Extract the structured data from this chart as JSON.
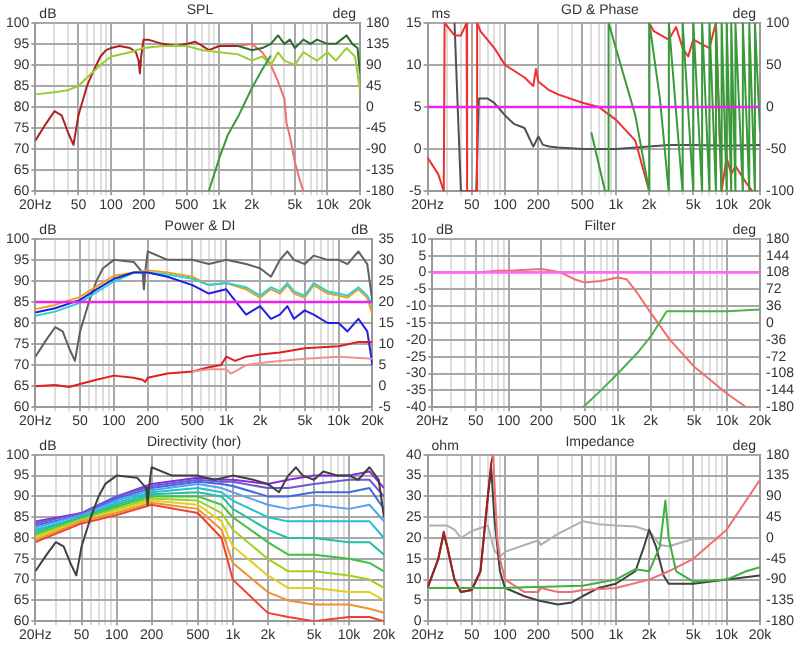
{
  "chart_data": [
    {
      "type": "line",
      "title": "SPL",
      "ylabel": "dB",
      "y2label": "deg",
      "log": "x",
      "grid": true,
      "xlim": [
        20,
        20000
      ],
      "xticks": [
        {
          "value": 20,
          "label": "20Hz"
        },
        {
          "value": 30,
          "label": null
        },
        {
          "value": 40,
          "label": null
        },
        50,
        {
          "value": 60,
          "label": null
        },
        {
          "value": 70,
          "label": null
        },
        {
          "value": 80,
          "label": null
        },
        {
          "value": 90,
          "label": null
        },
        100,
        200,
        {
          "value": 300,
          "label": null
        },
        {
          "value": 400,
          "label": null
        },
        500,
        {
          "value": 600,
          "label": null
        },
        {
          "value": 700,
          "label": null
        },
        {
          "value": 800,
          "label": null
        },
        {
          "value": 900,
          "label": null
        },
        {
          "value": 1000,
          "label": "1k"
        },
        {
          "value": 2000,
          "label": "2k"
        },
        {
          "value": 3000,
          "label": null
        },
        {
          "value": 4000,
          "label": null
        },
        {
          "value": 5000,
          "label": "5k"
        },
        {
          "value": 6000,
          "label": null
        },
        {
          "value": 7000,
          "label": null
        },
        {
          "value": 8000,
          "label": null
        },
        {
          "value": 9000,
          "label": null
        },
        {
          "value": 10000,
          "label": "10k"
        },
        {
          "value": 20000,
          "label": "20k"
        }
      ],
      "ylim": [
        60,
        100
      ],
      "yticks": [
        60,
        65,
        70,
        75,
        80,
        85,
        90,
        95,
        100
      ],
      "y2lim": [
        -180,
        180
      ],
      "y2ticks": [
        -180,
        -135,
        -90,
        -45,
        0,
        45,
        90,
        135,
        180
      ],
      "series": [
        {
          "color": "#b02020",
          "x": [
            20,
            25,
            30,
            35,
            40,
            45,
            50,
            60,
            70,
            80,
            90,
            100,
            120,
            150,
            170,
            180,
            185,
            190,
            200,
            220,
            300,
            400,
            500,
            600,
            700,
            800,
            1000,
            1200,
            1500
          ],
          "values": [
            72,
            76,
            79,
            78,
            74,
            71,
            78,
            85,
            89,
            92,
            93.5,
            94,
            94.5,
            94,
            93,
            91,
            88,
            92,
            96,
            96,
            95,
            94.5,
            95,
            95.5,
            94.5,
            93.5,
            94.5,
            94.5,
            94.5
          ]
        },
        {
          "color": "#f07070",
          "x": [
            1500,
            2000,
            2500,
            3000,
            3500,
            4000,
            4200,
            4500,
            5000,
            5500,
            6000
          ],
          "values": [
            94.5,
            95,
            93,
            90,
            86,
            82,
            76,
            73,
            67,
            63,
            60
          ]
        },
        {
          "color": "#2e6b2e",
          "x": [
            1500,
            2000,
            2500,
            3000,
            3500,
            4000,
            4500,
            5000,
            6000,
            7000,
            8000,
            10000,
            12000,
            15000,
            17000,
            19000,
            20000
          ],
          "values": [
            94.5,
            93.5,
            94,
            95,
            97,
            95,
            96,
            94,
            96,
            95,
            96,
            95,
            95,
            97,
            95,
            94,
            88
          ]
        },
        {
          "color": "#9acd32",
          "x": [
            20,
            30,
            40,
            50,
            60,
            80,
            100,
            150,
            200,
            300,
            500,
            700,
            1000,
            1500,
            2000,
            2500,
            3000,
            3500,
            4000,
            5000,
            6000,
            8000,
            10000,
            12000,
            15000,
            18000,
            20000
          ],
          "values": [
            83,
            83.5,
            84,
            85,
            87,
            90,
            92,
            93,
            94,
            94.5,
            94.5,
            93.5,
            93,
            92.5,
            91,
            92,
            90,
            93,
            91,
            90,
            93,
            91,
            93,
            91,
            94,
            92,
            84
          ]
        },
        {
          "color": "#3a9a3a",
          "axis": "y2",
          "x": [
            800,
            1000,
            1200,
            1500,
            2000,
            2500,
            3000
          ],
          "values": [
            -180,
            -110,
            -60,
            -20,
            40,
            80,
            110
          ]
        }
      ]
    },
    {
      "type": "line",
      "title": "GD & Phase",
      "ylabel": "ms",
      "y2label": "deg",
      "log": "x",
      "grid": true,
      "xlim": [
        20,
        20000
      ],
      "xticks": [
        {
          "value": 20,
          "label": "20Hz"
        },
        {
          "value": 30,
          "label": null
        },
        {
          "value": 40,
          "label": null
        },
        50,
        {
          "value": 60,
          "label": null
        },
        {
          "value": 70,
          "label": null
        },
        {
          "value": 80,
          "label": null
        },
        {
          "value": 90,
          "label": null
        },
        100,
        200,
        {
          "value": 300,
          "label": null
        },
        {
          "value": 400,
          "label": null
        },
        500,
        {
          "value": 600,
          "label": null
        },
        {
          "value": 700,
          "label": null
        },
        {
          "value": 800,
          "label": null
        },
        {
          "value": 900,
          "label": null
        },
        {
          "value": 1000,
          "label": "1k"
        },
        {
          "value": 2000,
          "label": "2k"
        },
        {
          "value": 3000,
          "label": null
        },
        {
          "value": 4000,
          "label": null
        },
        {
          "value": 5000,
          "label": "5k"
        },
        {
          "value": 6000,
          "label": null
        },
        {
          "value": 7000,
          "label": null
        },
        {
          "value": 8000,
          "label": null
        },
        {
          "value": 9000,
          "label": null
        },
        {
          "value": 10000,
          "label": "10k"
        },
        {
          "value": 20000,
          "label": "20k"
        }
      ],
      "ylim": [
        -5,
        15
      ],
      "yticks": [
        -5,
        0,
        5,
        10,
        15
      ],
      "y2lim": [
        -100,
        100
      ],
      "y2ticks": [
        -100,
        -50,
        0,
        50,
        100
      ],
      "ref_lines": [
        {
          "axis": "y2",
          "value": 0,
          "color": "#ee22ee"
        }
      ],
      "series": [
        {
          "color": "#505050",
          "x": [
            35,
            40,
            55,
            58,
            70,
            80,
            100,
            120,
            150,
            180,
            200,
            220,
            250,
            300,
            500,
            1000,
            2000,
            3000,
            5000,
            10000,
            20000
          ],
          "values": [
            15,
            -5,
            -5,
            6,
            6,
            5.5,
            4,
            3,
            2.5,
            0.3,
            1.5,
            0.5,
            0.3,
            0.2,
            0,
            0,
            0.3,
            0.5,
            0.5,
            0.4,
            0.5
          ]
        },
        {
          "color": "#f03030",
          "axis": "y2",
          "x": [
            20,
            25,
            28,
            28.5,
            35,
            40,
            45,
            45.5,
            55,
            56,
            60,
            80,
            100,
            150,
            180,
            190,
            200,
            210,
            250,
            300,
            500,
            700,
            1000,
            1500,
            2000
          ],
          "values": [
            -60,
            -80,
            -100,
            100,
            85,
            85,
            100,
            -100,
            -100,
            100,
            90,
            70,
            50,
            35,
            25,
            45,
            30,
            28,
            20,
            15,
            5,
            0,
            -15,
            -40,
            -100
          ]
        },
        {
          "color": "#f03030",
          "axis": "y2",
          "x": [
            2000,
            2200,
            3000,
            3500,
            4000,
            4500,
            5000,
            7000,
            8000,
            9000,
            10000,
            11000,
            12000,
            15000,
            17000
          ],
          "values": [
            100,
            90,
            80,
            95,
            70,
            60,
            80,
            70,
            100,
            -100,
            -60,
            -80,
            -70,
            -90,
            -100
          ]
        },
        {
          "color": "#3a9a3a",
          "axis": "y2",
          "x": [
            600,
            800,
            850,
            860,
            1000,
            1500,
            2000,
            2010,
            2500,
            3000,
            3010,
            4000,
            4010,
            5000,
            5010,
            6000,
            6010,
            7000,
            7010,
            8000,
            8010,
            9000,
            9010,
            10000,
            10010,
            11000,
            11010,
            12000,
            12010,
            14000,
            14010,
            16000,
            16010,
            18000,
            18010,
            20000
          ],
          "values": [
            -30,
            -100,
            -100,
            100,
            70,
            -10,
            -100,
            100,
            10,
            -100,
            100,
            -100,
            100,
            -100,
            100,
            -100,
            100,
            -100,
            100,
            -100,
            100,
            -100,
            100,
            -100,
            100,
            -100,
            100,
            -100,
            100,
            -100,
            100,
            -100,
            100,
            -100,
            100,
            -30
          ]
        }
      ]
    },
    {
      "type": "line",
      "title": "Power & DI",
      "ylabel": "dB",
      "y2label": "dB",
      "log": "x",
      "grid": true,
      "xlim": [
        20,
        20000
      ],
      "xticks": [
        {
          "value": 20,
          "label": "20Hz"
        },
        {
          "value": 30,
          "label": null
        },
        {
          "value": 40,
          "label": null
        },
        50,
        {
          "value": 60,
          "label": null
        },
        {
          "value": 70,
          "label": null
        },
        {
          "value": 80,
          "label": null
        },
        {
          "value": 90,
          "label": null
        },
        100,
        200,
        {
          "value": 300,
          "label": null
        },
        {
          "value": 400,
          "label": null
        },
        500,
        {
          "value": 600,
          "label": null
        },
        {
          "value": 700,
          "label": null
        },
        {
          "value": 800,
          "label": null
        },
        {
          "value": 900,
          "label": null
        },
        {
          "value": 1000,
          "label": "1k"
        },
        {
          "value": 2000,
          "label": "2k"
        },
        {
          "value": 3000,
          "label": null
        },
        {
          "value": 4000,
          "label": null
        },
        {
          "value": 5000,
          "label": "5k"
        },
        {
          "value": 6000,
          "label": null
        },
        {
          "value": 7000,
          "label": null
        },
        {
          "value": 8000,
          "label": null
        },
        {
          "value": 9000,
          "label": null
        },
        {
          "value": 10000,
          "label": "10k"
        },
        {
          "value": 20000,
          "label": "20k"
        }
      ],
      "ylim": [
        60,
        100
      ],
      "yticks": [
        60,
        65,
        70,
        75,
        80,
        85,
        90,
        95,
        100
      ],
      "y2lim": [
        -5,
        35
      ],
      "y2ticks": [
        -5,
        0,
        5,
        10,
        15,
        20,
        25,
        30,
        35
      ],
      "ref_lines": [
        {
          "axis": "y",
          "value": 85,
          "color": "#ee22ee"
        }
      ],
      "series": [
        {
          "color": "#606060",
          "x": [
            20,
            25,
            30,
            35,
            40,
            45,
            50,
            60,
            70,
            80,
            100,
            150,
            180,
            185,
            190,
            200,
            300,
            500,
            700,
            1000,
            1500,
            2000,
            2500,
            3000,
            3500,
            4000,
            5000,
            6000,
            8000,
            10000,
            12000,
            15000,
            18000,
            20000
          ],
          "values": [
            72,
            76,
            79,
            78,
            74,
            71,
            78,
            85,
            90,
            93,
            95,
            94.5,
            92,
            88,
            92,
            97,
            95,
            95,
            94,
            95,
            94,
            93,
            91,
            95,
            97,
            95,
            94,
            96,
            95,
            95,
            94,
            97,
            94,
            85
          ]
        },
        {
          "color": "#f0a020",
          "x": [
            20,
            30,
            50,
            70,
            100,
            150,
            200,
            300,
            500,
            700,
            1000,
            1500,
            2000,
            2500,
            3000,
            3500,
            4000,
            5000,
            6000,
            8000,
            10000,
            12000,
            15000,
            18000,
            20000
          ],
          "values": [
            83.3,
            84.3,
            86.2,
            88.7,
            91.2,
            92,
            92.5,
            92,
            91,
            89,
            89.5,
            88,
            86,
            88,
            87,
            89,
            87,
            86,
            89,
            87,
            86.5,
            86,
            88,
            86,
            82
          ]
        },
        {
          "color": "#30d0d0",
          "x": [
            20,
            30,
            50,
            70,
            100,
            150,
            200,
            300,
            500,
            700,
            1000,
            1500,
            2000,
            2500,
            3000,
            3500,
            4000,
            5000,
            6000,
            8000,
            10000,
            12000,
            15000,
            18000,
            20000
          ],
          "values": [
            81.7,
            82.7,
            84.8,
            87.3,
            89.8,
            92,
            92,
            91.5,
            90.5,
            89,
            89.5,
            88.5,
            86.5,
            88.5,
            87.5,
            89.5,
            87.5,
            86.5,
            89.5,
            87.5,
            87,
            86.5,
            88.5,
            86.5,
            84
          ]
        },
        {
          "color": "#2020e0",
          "x": [
            20,
            30,
            50,
            70,
            100,
            150,
            200,
            300,
            500,
            700,
            1000,
            1500,
            2000,
            2500,
            3000,
            3500,
            4000,
            5000,
            6000,
            8000,
            10000,
            12000,
            15000,
            18000,
            20000
          ],
          "values": [
            82.5,
            83.5,
            85.5,
            88,
            90.5,
            92,
            92,
            91,
            89,
            87,
            88,
            82,
            84,
            81,
            82,
            84,
            81,
            83,
            82,
            80,
            80,
            78,
            81,
            78,
            70
          ]
        },
        {
          "color": "#e02020",
          "axis": "y2",
          "x": [
            20,
            30,
            40,
            50,
            70,
            100,
            150,
            180,
            190,
            200,
            300,
            500,
            700,
            900,
            1000,
            1200,
            1500,
            2000,
            3000,
            5000,
            10000,
            15000,
            20000
          ],
          "values": [
            0,
            0.3,
            -0.2,
            0.5,
            1.5,
            2.5,
            2,
            1.5,
            1,
            2,
            3,
            3.5,
            4.5,
            5,
            7,
            6,
            7,
            7.5,
            8,
            9,
            9.5,
            10.5,
            10.5
          ]
        },
        {
          "color": "#f09090",
          "axis": "y2",
          "x": [
            500,
            700,
            1000,
            1100,
            1200,
            1500,
            2000,
            3000,
            5000,
            10000,
            20000
          ],
          "values": [
            3.5,
            4,
            4,
            3,
            3.5,
            5,
            5.5,
            6,
            6.5,
            7,
            6.5
          ]
        }
      ]
    },
    {
      "type": "line",
      "title": "Filter",
      "ylabel": "dB",
      "y2label": "deg",
      "log": "x",
      "grid": true,
      "xlim": [
        20,
        20000
      ],
      "xticks": [
        {
          "value": 20,
          "label": "20Hz"
        },
        {
          "value": 30,
          "label": null
        },
        {
          "value": 40,
          "label": null
        },
        50,
        {
          "value": 60,
          "label": null
        },
        {
          "value": 70,
          "label": null
        },
        {
          "value": 80,
          "label": null
        },
        {
          "value": 90,
          "label": null
        },
        100,
        200,
        {
          "value": 300,
          "label": null
        },
        {
          "value": 400,
          "label": null
        },
        500,
        {
          "value": 600,
          "label": null
        },
        {
          "value": 700,
          "label": null
        },
        {
          "value": 800,
          "label": null
        },
        {
          "value": 900,
          "label": null
        },
        {
          "value": 1000,
          "label": "1k"
        },
        {
          "value": 2000,
          "label": "2k"
        },
        {
          "value": 3000,
          "label": null
        },
        {
          "value": 4000,
          "label": null
        },
        {
          "value": 5000,
          "label": "5k"
        },
        {
          "value": 6000,
          "label": null
        },
        {
          "value": 7000,
          "label": null
        },
        {
          "value": 8000,
          "label": null
        },
        {
          "value": 9000,
          "label": null
        },
        {
          "value": 10000,
          "label": "10k"
        },
        {
          "value": 20000,
          "label": "20k"
        }
      ],
      "ylim": [
        -40,
        10
      ],
      "yticks": [
        -40,
        -35,
        -30,
        -25,
        -20,
        -15,
        -10,
        -5,
        0,
        5,
        10
      ],
      "y2lim": [
        -180,
        180
      ],
      "y2ticks": [
        -180,
        -144,
        -108,
        -72,
        -36,
        0,
        36,
        72,
        108,
        144,
        180
      ],
      "ref_lines": [
        {
          "axis": "y",
          "value": 0,
          "color": "#ff66ff"
        }
      ],
      "series": [
        {
          "color": "#f07070",
          "x": [
            20,
            50,
            80,
            100,
            200,
            250,
            300,
            400,
            500,
            700,
            1000,
            1200,
            1500,
            2000,
            3000,
            5000,
            10000,
            15000
          ],
          "values": [
            0,
            0,
            0.5,
            0.5,
            1,
            0.5,
            0,
            -2,
            -3,
            -2.5,
            -1.5,
            -2,
            -6,
            -12,
            -20,
            -28,
            -36,
            -40
          ]
        },
        {
          "color": "#50b050",
          "x": [
            480,
            700,
            1000,
            1500,
            2000,
            2800,
            5000,
            10000,
            20000
          ],
          "values": [
            -40,
            -35,
            -30,
            -24,
            -19,
            -11.5,
            -11.5,
            -11.5,
            -11
          ]
        }
      ]
    },
    {
      "type": "line",
      "title": "Directivity (hor)",
      "ylabel": "dB",
      "log": "x",
      "grid": true,
      "xlim": [
        20,
        20000
      ],
      "xticks": [
        {
          "value": 20,
          "label": "20Hz"
        },
        {
          "value": 30,
          "label": null
        },
        {
          "value": 40,
          "label": null
        },
        50,
        {
          "value": 60,
          "label": null
        },
        {
          "value": 70,
          "label": null
        },
        {
          "value": 80,
          "label": null
        },
        {
          "value": 90,
          "label": null
        },
        100,
        200,
        {
          "value": 300,
          "label": null
        },
        {
          "value": 400,
          "label": null
        },
        500,
        {
          "value": 600,
          "label": null
        },
        {
          "value": 700,
          "label": null
        },
        {
          "value": 800,
          "label": null
        },
        {
          "value": 900,
          "label": null
        },
        {
          "value": 1000,
          "label": "1k"
        },
        {
          "value": 2000,
          "label": "2k"
        },
        {
          "value": 3000,
          "label": null
        },
        {
          "value": 4000,
          "label": null
        },
        {
          "value": 5000,
          "label": "5k"
        },
        {
          "value": 6000,
          "label": null
        },
        {
          "value": 7000,
          "label": null
        },
        {
          "value": 8000,
          "label": null
        },
        {
          "value": 9000,
          "label": null
        },
        {
          "value": 10000,
          "label": "10k"
        },
        {
          "value": 20000,
          "label": "20k"
        }
      ],
      "ylim": [
        60,
        100
      ],
      "yticks": [
        60,
        65,
        70,
        75,
        80,
        85,
        90,
        95,
        100
      ],
      "x": [
        20,
        50,
        100,
        200,
        500,
        800,
        1000,
        2000,
        3000,
        5000,
        10000,
        15000,
        20000
      ],
      "series": [
        {
          "color": "#8a2be2",
          "values": [
            84,
            86,
            90,
            93,
            94.5,
            94,
            94,
            93,
            94,
            95,
            95,
            96,
            92
          ]
        },
        {
          "color": "#6a5acd",
          "values": [
            83.5,
            86,
            90,
            92.5,
            94,
            93.5,
            93.5,
            92,
            92,
            93,
            94,
            94,
            90
          ]
        },
        {
          "color": "#4169e1",
          "values": [
            83,
            85.5,
            89.5,
            92,
            93.5,
            93,
            92.5,
            90,
            90,
            91,
            91,
            92,
            87
          ]
        },
        {
          "color": "#5aa0f0",
          "values": [
            82.5,
            85.5,
            89,
            91.5,
            93,
            92,
            91,
            88,
            87,
            88,
            87,
            88,
            84
          ]
        },
        {
          "color": "#20c0d0",
          "values": [
            82,
            85,
            88.5,
            91,
            92,
            91,
            89,
            85,
            84,
            84,
            84,
            84,
            80
          ]
        },
        {
          "color": "#20c0a0",
          "values": [
            81.5,
            85,
            88,
            90.5,
            91,
            90,
            87,
            82,
            80,
            80,
            79,
            79,
            76
          ]
        },
        {
          "color": "#40c040",
          "values": [
            81,
            84.5,
            87.5,
            90,
            90,
            88,
            85,
            79,
            76,
            76,
            75,
            74,
            72
          ]
        },
        {
          "color": "#a0d020",
          "values": [
            80.5,
            84.5,
            87,
            89.5,
            89,
            86,
            82,
            75,
            72,
            72,
            71,
            70,
            68
          ]
        },
        {
          "color": "#e0d020",
          "values": [
            80,
            84,
            86.5,
            89,
            88,
            84,
            78,
            71,
            68,
            68,
            67,
            67,
            65
          ]
        },
        {
          "color": "#f09030",
          "values": [
            79.5,
            84,
            86,
            88.5,
            87,
            82,
            74,
            67,
            65,
            64,
            64,
            63,
            62
          ]
        },
        {
          "color": "#f04030",
          "values": [
            79,
            83.5,
            85.5,
            88,
            86,
            80,
            70,
            62,
            61,
            60,
            61,
            61,
            60
          ]
        },
        {
          "color": "#404040",
          "x": [
            20,
            25,
            30,
            35,
            40,
            45,
            50,
            60,
            70,
            80,
            100,
            150,
            180,
            185,
            190,
            200,
            300,
            500,
            700,
            1000,
            1500,
            2000,
            2500,
            3000,
            3500,
            4000,
            5000,
            6000,
            8000,
            10000,
            12000,
            15000,
            18000,
            20000
          ],
          "values": [
            72,
            76,
            79,
            78,
            74,
            71,
            78,
            85,
            90,
            93,
            95,
            94.5,
            92,
            88,
            92,
            97,
            95,
            95,
            94,
            95,
            94,
            93,
            91,
            95,
            97,
            95,
            94,
            96,
            95,
            95,
            94,
            97,
            94,
            85
          ]
        }
      ]
    },
    {
      "type": "line",
      "title": "Impedance",
      "ylabel": "ohm",
      "y2label": "deg",
      "log": "x",
      "grid": true,
      "xlim": [
        20,
        20000
      ],
      "xticks": [
        {
          "value": 20,
          "label": "20Hz"
        },
        {
          "value": 30,
          "label": null
        },
        {
          "value": 40,
          "label": null
        },
        50,
        {
          "value": 60,
          "label": null
        },
        {
          "value": 70,
          "label": null
        },
        {
          "value": 80,
          "label": null
        },
        {
          "value": 90,
          "label": null
        },
        100,
        200,
        {
          "value": 300,
          "label": null
        },
        {
          "value": 400,
          "label": null
        },
        500,
        {
          "value": 600,
          "label": null
        },
        {
          "value": 700,
          "label": null
        },
        {
          "value": 800,
          "label": null
        },
        {
          "value": 900,
          "label": null
        },
        {
          "value": 1000,
          "label": "1k"
        },
        {
          "value": 2000,
          "label": "2k"
        },
        {
          "value": 3000,
          "label": null
        },
        {
          "value": 4000,
          "label": null
        },
        {
          "value": 5000,
          "label": "5k"
        },
        {
          "value": 6000,
          "label": null
        },
        {
          "value": 7000,
          "label": null
        },
        {
          "value": 8000,
          "label": null
        },
        {
          "value": 9000,
          "label": null
        },
        {
          "value": 10000,
          "label": "10k"
        },
        {
          "value": 20000,
          "label": "20k"
        }
      ],
      "ylim": [
        0,
        40
      ],
      "yticks": [
        0,
        5,
        10,
        15,
        20,
        25,
        30,
        35,
        40
      ],
      "y2lim": [
        -180,
        180
      ],
      "y2ticks": [
        -180,
        -135,
        -90,
        -45,
        0,
        45,
        90,
        135,
        180
      ],
      "series": [
        {
          "color": "#b0b0b0",
          "axis": "y2",
          "x": [
            20,
            30,
            35,
            40,
            50,
            70,
            80,
            90,
            100,
            150,
            200,
            210,
            300,
            500,
            700,
            1000,
            1500,
            2000,
            2500,
            3000,
            5000,
            10000,
            20000
          ],
          "values": [
            27,
            27,
            18,
            0,
            15,
            27,
            -27,
            -40,
            -30,
            -15,
            -5,
            -15,
            9,
            36,
            30,
            27,
            25,
            15,
            -15,
            -18,
            -2,
            0,
            0
          ]
        },
        {
          "color": "#404040",
          "x": [
            20,
            25,
            28,
            30,
            35,
            40,
            50,
            60,
            70,
            75,
            80,
            90,
            100,
            150,
            200,
            300,
            400,
            500,
            700,
            1000,
            1500,
            1800,
            2000,
            2300,
            2700,
            3000,
            5000,
            10000,
            20000
          ],
          "values": [
            8,
            15,
            21,
            18,
            10,
            7,
            7.5,
            12,
            30,
            37,
            25,
            12,
            8,
            6,
            5,
            4,
            4.5,
            6,
            8,
            9,
            12,
            18,
            22,
            18,
            11,
            9,
            9,
            10,
            11
          ]
        },
        {
          "color": "#a02020",
          "x": [
            20,
            25,
            28,
            30,
            35,
            40,
            50,
            60,
            70,
            75,
            78
          ],
          "values": [
            8,
            15,
            21.5,
            18,
            10,
            7,
            7.5,
            12,
            30,
            38,
            40
          ]
        },
        {
          "color": "#f07070",
          "x": [
            78,
            85,
            90,
            100,
            150,
            200,
            210,
            300,
            400,
            500,
            1000,
            2000,
            3000,
            5000,
            10000,
            20000
          ],
          "values": [
            40,
            20,
            15,
            10,
            7,
            7,
            8,
            7,
            7,
            7.5,
            8,
            10,
            12,
            15,
            22,
            34
          ]
        },
        {
          "color": "#40b040",
          "x": [
            20,
            100,
            500,
            1000,
            1500,
            2000,
            2500,
            2800,
            3000,
            3500,
            5000,
            10000,
            15000,
            20000
          ],
          "values": [
            8,
            8,
            8.5,
            10,
            12.5,
            12,
            18,
            29,
            20,
            12,
            9.5,
            10,
            12,
            13
          ]
        }
      ]
    }
  ]
}
